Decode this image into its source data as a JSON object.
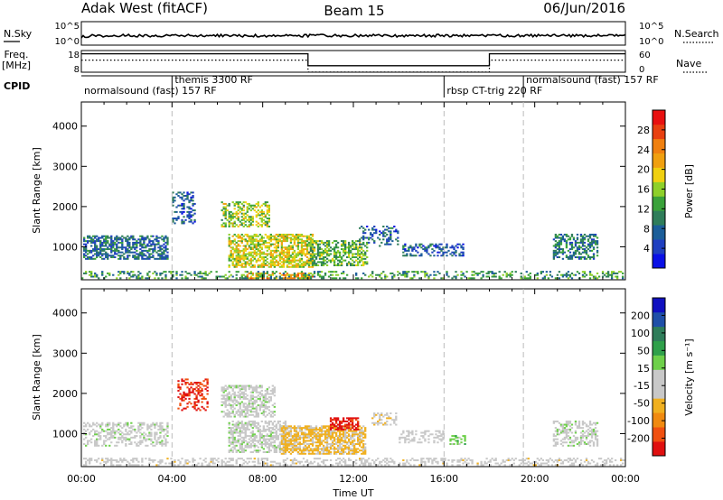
{
  "header": {
    "station": "Adak West (fitACF)",
    "beam": "Beam 15",
    "date": "06/Jun/2016"
  },
  "strips": {
    "nsky": {
      "label": "N.Sky",
      "ticks": [
        "10^5",
        "10^0"
      ]
    },
    "nsearch": {
      "label": "N.Search",
      "ticks": [
        "10^5",
        "10^0"
      ]
    },
    "freq": {
      "label": "Freq. [MHz]",
      "ticks": [
        "18",
        "8"
      ]
    },
    "nave": {
      "label": "Nave",
      "ticks": [
        "60",
        "0"
      ]
    },
    "cpid": {
      "label": "CPID",
      "segments": [
        {
          "name": "normalsound (fast) 157 RF",
          "start": 0.0,
          "end": 4.0
        },
        {
          "name": "themis 3300 RF",
          "start": 4.0,
          "end": 16.0
        },
        {
          "name": "rbsp CT-trig 220 RF",
          "start": 16.0,
          "end": 19.5
        },
        {
          "name": "normalsound (fast) 157 RF",
          "start": 19.5,
          "end": 24.0
        }
      ]
    },
    "freq_steps": [
      {
        "start": 0.0,
        "end": 10.0,
        "mhz": 16.5
      },
      {
        "start": 10.0,
        "end": 18.0,
        "mhz": 11.0
      },
      {
        "start": 18.0,
        "end": 24.0,
        "mhz": 16.5
      }
    ]
  },
  "chart_data": [
    {
      "type": "heatmap",
      "panel": "power",
      "ylabel": "Slant Range [km]",
      "xlabel": "Time UT",
      "xlim": [
        0,
        24
      ],
      "ylim": [
        180,
        4600
      ],
      "xticks": [
        "00:00",
        "04:00",
        "08:00",
        "12:00",
        "16:00",
        "20:00",
        "00:00"
      ],
      "yticks": [
        "1000",
        "2000",
        "3000",
        "4000"
      ],
      "colorbar": {
        "label": "Power [dB]",
        "ticks": [
          "4",
          "8",
          "12",
          "16",
          "20",
          "24",
          "28"
        ],
        "range": [
          0,
          32
        ],
        "colors": [
          "#0a10e6",
          "#1f3fc0",
          "#1c5e99",
          "#2f7d5a",
          "#3aa23a",
          "#8ed02a",
          "#f0d010",
          "#f0a010",
          "#f08010",
          "#e84010",
          "#e81010"
        ]
      },
      "regions": [
        {
          "t0": 0.1,
          "t1": 3.8,
          "r0": 650,
          "r1": 1250,
          "level": 8,
          "density": 0.55
        },
        {
          "t0": 4.0,
          "t1": 5.0,
          "r0": 1550,
          "r1": 2350,
          "level": 6,
          "density": 0.35
        },
        {
          "t0": 6.2,
          "t1": 8.3,
          "r0": 1450,
          "r1": 2100,
          "level": 16,
          "density": 0.5
        },
        {
          "t0": 6.5,
          "t1": 10.2,
          "r0": 450,
          "r1": 1300,
          "level": 18,
          "density": 0.65
        },
        {
          "t0": 10.0,
          "t1": 12.6,
          "r0": 500,
          "r1": 1150,
          "level": 14,
          "density": 0.55
        },
        {
          "t0": 12.3,
          "t1": 14.0,
          "r0": 1000,
          "r1": 1500,
          "level": 7,
          "density": 0.3
        },
        {
          "t0": 14.2,
          "t1": 16.8,
          "r0": 750,
          "r1": 1050,
          "level": 7,
          "density": 0.4
        },
        {
          "t0": 20.8,
          "t1": 22.8,
          "r0": 650,
          "r1": 1300,
          "level": 9,
          "density": 0.5
        },
        {
          "t0": 7.2,
          "t1": 10.2,
          "r0": 200,
          "r1": 340,
          "level": 22,
          "density": 0.55
        },
        {
          "t0": 0.0,
          "t1": 24.0,
          "r0": 190,
          "r1": 400,
          "level": 12,
          "density": 0.35
        }
      ]
    },
    {
      "type": "heatmap",
      "panel": "velocity",
      "ylabel": "Slant Range [km]",
      "xlabel": "Time UT",
      "xlim": [
        0,
        24
      ],
      "ylim": [
        180,
        4600
      ],
      "xticks": [
        "00:00",
        "04:00",
        "08:00",
        "12:00",
        "16:00",
        "20:00",
        "00:00"
      ],
      "yticks": [
        "1000",
        "2000",
        "3000",
        "4000"
      ],
      "colorbar": {
        "label": "Velocity [m s⁻¹]",
        "ticks": [
          "200",
          "100",
          "50",
          "15",
          "-15",
          "-50",
          "-100",
          "-200"
        ],
        "range": [
          -250,
          250
        ],
        "colors": [
          "#e01010",
          "#f05010",
          "#f08a10",
          "#f0b020",
          "#c8c8c8",
          "#c8c8c8",
          "#6ed04a",
          "#2fa04a",
          "#2f7d5a",
          "#1f4fa8",
          "#1010c0"
        ]
      },
      "regions": [
        {
          "t0": 0.1,
          "t1": 3.8,
          "r0": 650,
          "r1": 1250,
          "level": 0,
          "density": 0.45
        },
        {
          "t0": 4.3,
          "t1": 5.6,
          "r0": 1550,
          "r1": 2350,
          "level": -210,
          "density": 0.35
        },
        {
          "t0": 6.2,
          "t1": 8.5,
          "r0": 1400,
          "r1": 2200,
          "level": 0,
          "density": 0.55
        },
        {
          "t0": 6.5,
          "t1": 9.0,
          "r0": 500,
          "r1": 1300,
          "level": 0,
          "density": 0.6
        },
        {
          "t0": 8.8,
          "t1": 12.5,
          "r0": 450,
          "r1": 1200,
          "level": -80,
          "density": 0.7
        },
        {
          "t0": 11.0,
          "t1": 12.2,
          "r0": 1050,
          "r1": 1400,
          "level": -220,
          "density": 0.6
        },
        {
          "t0": 12.8,
          "t1": 13.9,
          "r0": 1200,
          "r1": 1500,
          "level": -60,
          "density": 0.45
        },
        {
          "t0": 14.0,
          "t1": 16.0,
          "r0": 750,
          "r1": 1050,
          "level": -25,
          "density": 0.35
        },
        {
          "t0": 16.3,
          "t1": 16.9,
          "r0": 700,
          "r1": 950,
          "level": 45,
          "density": 0.5
        },
        {
          "t0": 20.8,
          "t1": 22.8,
          "r0": 650,
          "r1": 1300,
          "level": 0,
          "density": 0.45
        },
        {
          "t0": 0.0,
          "t1": 24.0,
          "r0": 190,
          "r1": 400,
          "level": -40,
          "density": 0.35
        }
      ]
    }
  ]
}
